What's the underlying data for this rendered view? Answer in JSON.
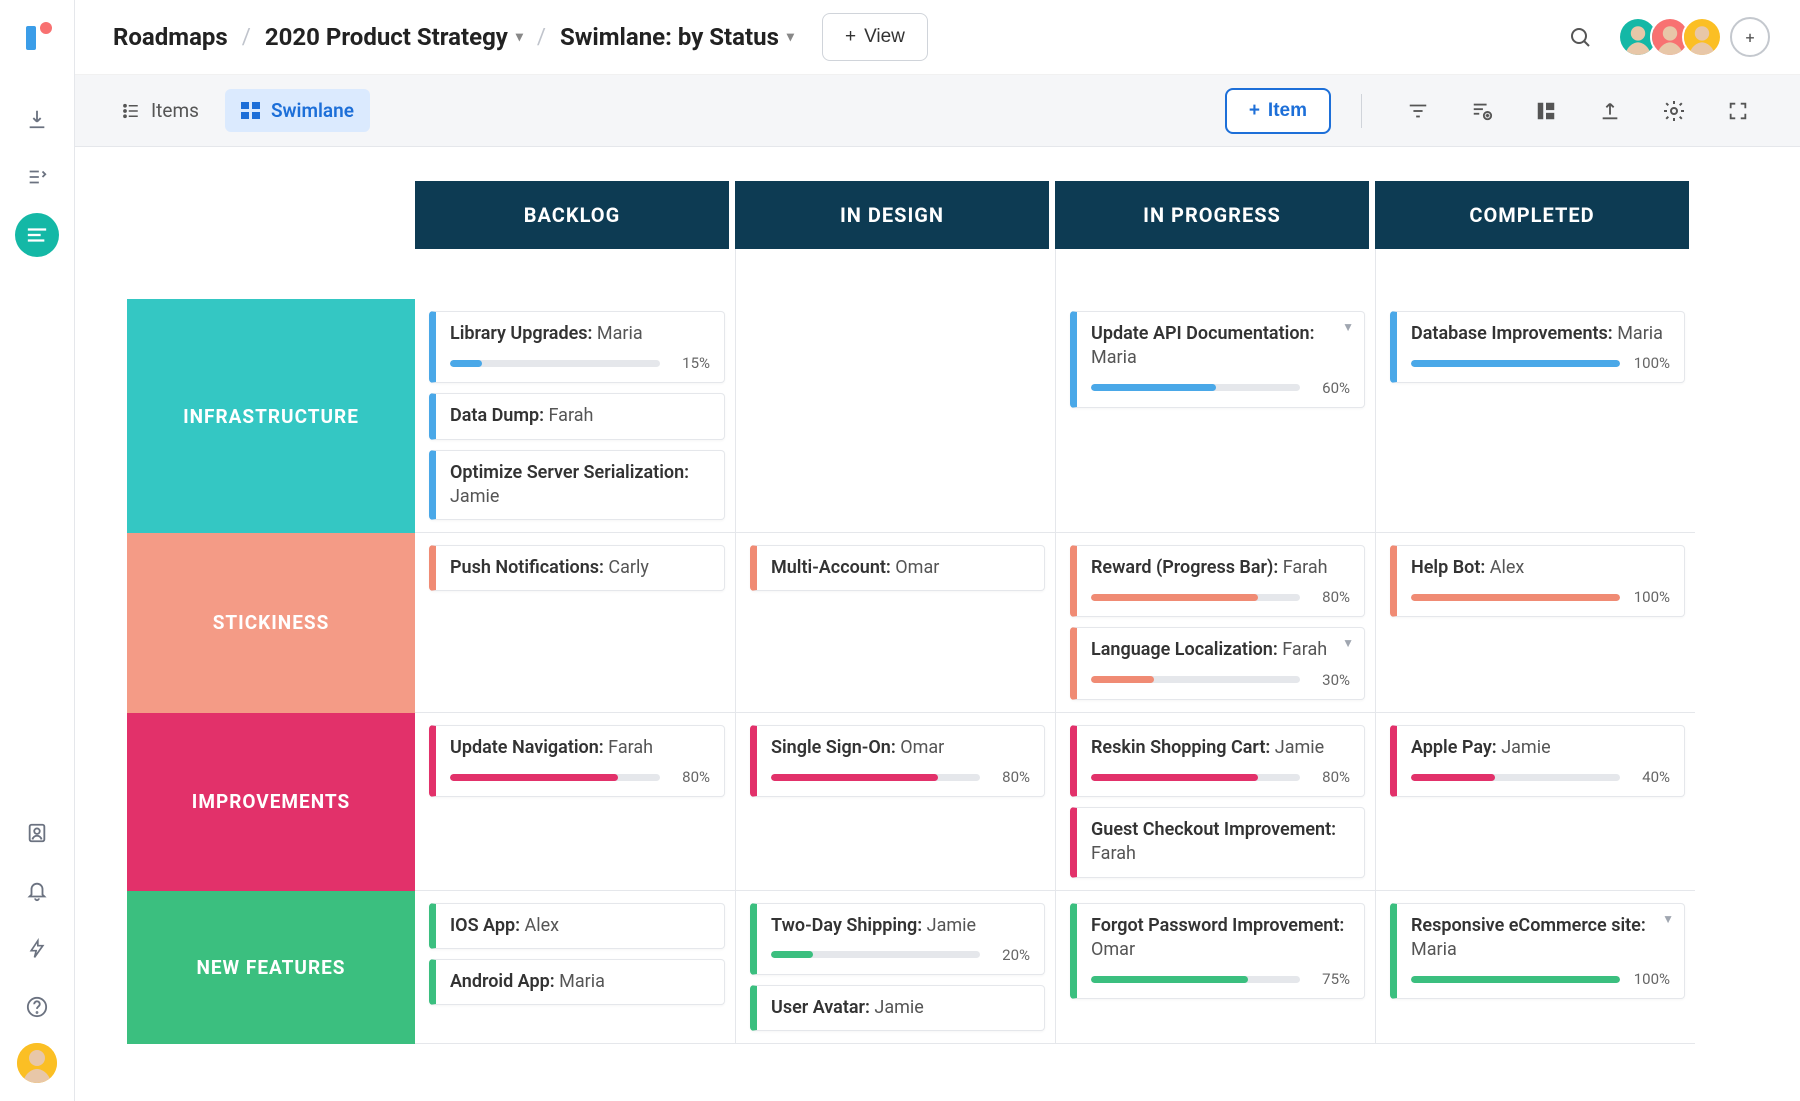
{
  "breadcrumb": {
    "root": "Roadmaps",
    "project": "2020 Product Strategy",
    "view": "Swimlane: by Status"
  },
  "topbar": {
    "view_button": "View",
    "avatars": [
      "#14b8a6",
      "#f87171",
      "#fbbf24"
    ]
  },
  "tabs": {
    "items": "Items",
    "swimlane": "Swimlane"
  },
  "toolbar": {
    "item_button": "Item"
  },
  "columns": [
    "BACKLOG",
    "IN DESIGN",
    "IN PROGRESS",
    "COMPLETED"
  ],
  "column_header_bg": "#0d3b53",
  "lanes": [
    {
      "name": "INFRASTRUCTURE",
      "color": "#34c7c3",
      "card_color": "#4aa8e8",
      "cells": [
        [
          {
            "title": "Library Upgrades:",
            "owner": "Maria",
            "progress": 15
          },
          {
            "title": "Data Dump:",
            "owner": "Farah"
          },
          {
            "title": "Optimize Server Serialization:",
            "owner": "Jamie"
          }
        ],
        [],
        [
          {
            "title": "Update API Documentation:",
            "owner": "Maria",
            "progress": 60,
            "menu": true
          }
        ],
        [
          {
            "title": "Database Improvements:",
            "owner": "Maria",
            "progress": 100
          }
        ]
      ]
    },
    {
      "name": "STICKINESS",
      "color": "#f49b86",
      "card_color": "#f08b74",
      "cells": [
        [
          {
            "title": "Push Notifications:",
            "owner": "Carly"
          }
        ],
        [
          {
            "title": "Multi-Account:",
            "owner": "Omar"
          }
        ],
        [
          {
            "title": "Reward (Progress Bar):",
            "owner": "Farah",
            "progress": 80
          },
          {
            "title": "Language Localization:",
            "owner": "Farah",
            "progress": 30,
            "menu": true
          }
        ],
        [
          {
            "title": "Help Bot:",
            "owner": "Alex",
            "progress": 100
          }
        ]
      ]
    },
    {
      "name": "IMPROVEMENTS",
      "color": "#e2316a",
      "card_color": "#e2316a",
      "cells": [
        [
          {
            "title": "Update Navigation:",
            "owner": "Farah",
            "progress": 80
          }
        ],
        [
          {
            "title": "Single Sign-On:",
            "owner": "Omar",
            "progress": 80
          }
        ],
        [
          {
            "title": "Reskin Shopping Cart:",
            "owner": "Jamie",
            "progress": 80
          },
          {
            "title": "Guest Checkout Improvement:",
            "owner": "Farah"
          }
        ],
        [
          {
            "title": "Apple Pay:",
            "owner": "Jamie",
            "progress": 40
          }
        ]
      ]
    },
    {
      "name": "NEW FEATURES",
      "color": "#3bbf7f",
      "card_color": "#3bbf7f",
      "cells": [
        [
          {
            "title": "IOS App:",
            "owner": "Alex"
          },
          {
            "title": "Android App: ",
            "owner": "Maria"
          }
        ],
        [
          {
            "title": "Two-Day Shipping:",
            "owner": "Jamie",
            "progress": 20
          },
          {
            "title": "User Avatar:",
            "owner": "Jamie"
          }
        ],
        [
          {
            "title": "Forgot Password Improvement:",
            "owner": "Omar",
            "progress": 75
          }
        ],
        [
          {
            "title": "Responsive eCommerce site:",
            "owner": "Maria",
            "progress": 100,
            "menu": true
          }
        ]
      ]
    }
  ]
}
